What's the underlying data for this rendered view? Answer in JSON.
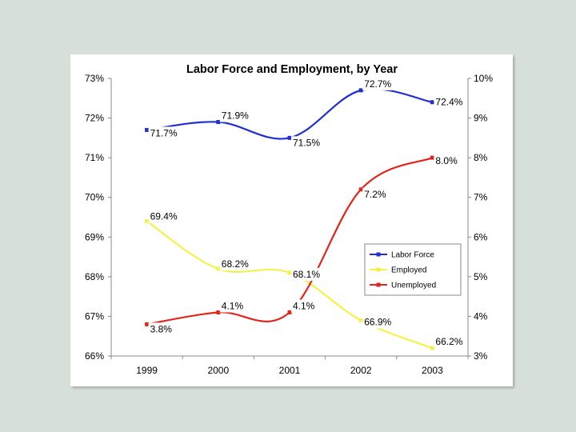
{
  "colors": {
    "background": "#d7e0d8",
    "labor_force": "#1f2fd0",
    "employed": "#f4f24a",
    "unemployed": "#e3241c"
  },
  "chart_data": {
    "type": "line",
    "title": "Labor Force and Employment, by Year",
    "categories": [
      "1999",
      "2000",
      "2001",
      "2002",
      "2003"
    ],
    "left_axis": {
      "ylim": [
        66,
        73
      ],
      "ticks": [
        "66%",
        "67%",
        "68%",
        "69%",
        "70%",
        "71%",
        "72%",
        "73%"
      ]
    },
    "right_axis": {
      "ylim": [
        3,
        10
      ],
      "ticks": [
        "3%",
        "4%",
        "5%",
        "6%",
        "7%",
        "8%",
        "9%",
        "10%"
      ]
    },
    "series": [
      {
        "name": "Labor Force",
        "axis": "left",
        "values": [
          71.7,
          71.9,
          71.5,
          72.7,
          72.4
        ],
        "labels": [
          "71.7%",
          "71.9%",
          "71.5%",
          "72.7%",
          "72.4%"
        ]
      },
      {
        "name": "Employed",
        "axis": "left",
        "values": [
          69.4,
          68.2,
          68.1,
          66.9,
          66.2
        ],
        "labels": [
          "69.4%",
          "68.2%",
          "68.1%",
          "66.9%",
          "66.2%"
        ]
      },
      {
        "name": "Unemployed",
        "axis": "right",
        "values": [
          3.8,
          4.1,
          4.1,
          7.2,
          8.0
        ],
        "labels": [
          "3.8%",
          "4.1%",
          "4.1%",
          "7.2%",
          "8.0%"
        ]
      }
    ],
    "legend": [
      "Labor Force",
      "Employed",
      "Unemployed"
    ],
    "legend_position": "middle-right",
    "grid": false
  }
}
